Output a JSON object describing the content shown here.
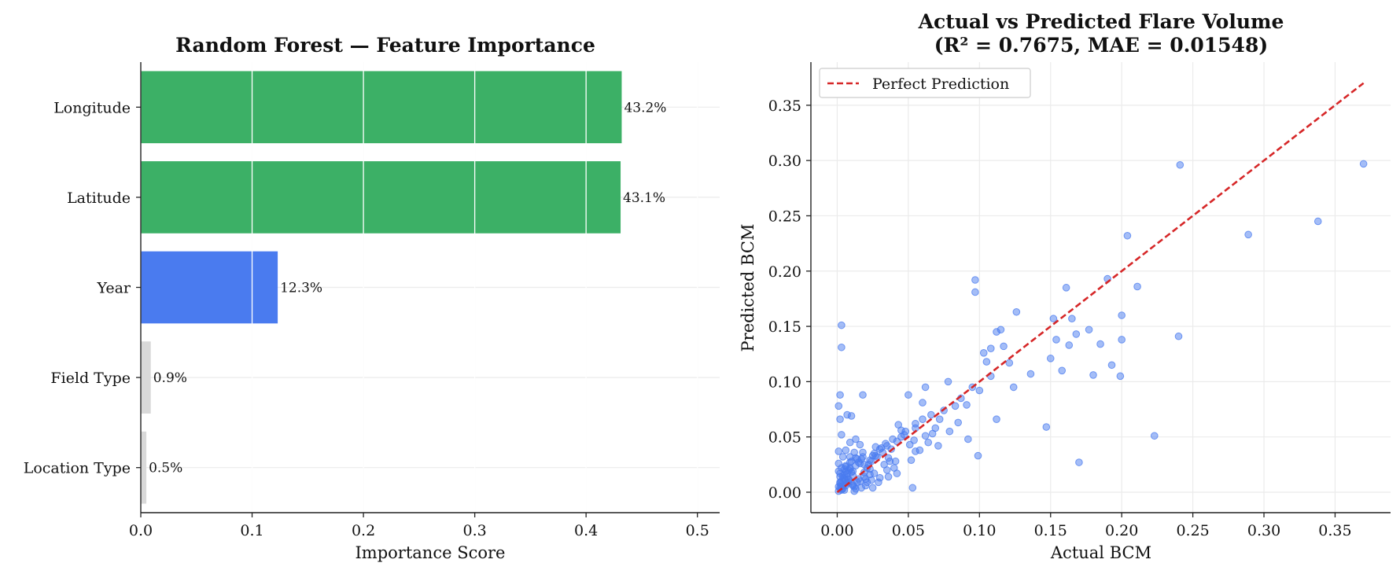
{
  "chart_data": [
    {
      "type": "bar",
      "orientation": "horizontal",
      "title": "Random Forest — Feature Importance",
      "xlabel": "Importance Score",
      "ylabel": "",
      "xlim": [
        0,
        0.52
      ],
      "xticks": [
        "0.0",
        "0.1",
        "0.2",
        "0.3",
        "0.4",
        "0.5"
      ],
      "grid": true,
      "categories": [
        "Longitude",
        "Latitude",
        "Year",
        "Field Type",
        "Location Type"
      ],
      "values": [
        0.432,
        0.431,
        0.123,
        0.009,
        0.005
      ],
      "value_labels": [
        "43.2%",
        "43.1%",
        "12.3%",
        "0.9%",
        "0.5%"
      ],
      "colors": [
        "#3cb066",
        "#3cb066",
        "#4a7bef",
        "#d9d9d9",
        "#d9d9d9"
      ]
    },
    {
      "type": "scatter",
      "title": "Actual vs Predicted Flare Volume",
      "subtitle": "(R² = 0.7675, MAE = 0.01548)",
      "xlabel": "Actual BCM",
      "ylabel": "Predicted BCM",
      "xlim": [
        -0.0185,
        0.389
      ],
      "ylim": [
        -0.0185,
        0.389
      ],
      "xticks": [
        "0.00",
        "0.05",
        "0.10",
        "0.15",
        "0.20",
        "0.25",
        "0.30",
        "0.35"
      ],
      "yticks": [
        "0.00",
        "0.05",
        "0.10",
        "0.15",
        "0.20",
        "0.25",
        "0.30",
        "0.35"
      ],
      "grid": true,
      "legend": {
        "position": "top-left",
        "entries": [
          "Perfect Prediction"
        ]
      },
      "point_color": "#4a7bef",
      "line_color": "#d62728",
      "reference_line": {
        "name": "Perfect Prediction",
        "x": [
          0,
          0.37
        ],
        "y": [
          0,
          0.37
        ]
      },
      "series": [
        {
          "name": "",
          "x": [
            0.37,
            0.241,
            0.338,
            0.289,
            0.24,
            0.204,
            0.223,
            0.211,
            0.2,
            0.199,
            0.2,
            0.19,
            0.193,
            0.185,
            0.177,
            0.165,
            0.18,
            0.161,
            0.163,
            0.152,
            0.15,
            0.158,
            0.17,
            0.168,
            0.154,
            0.147,
            0.136,
            0.126,
            0.121,
            0.112,
            0.108,
            0.103,
            0.097,
            0.097,
            0.095,
            0.108,
            0.115,
            0.117,
            0.105,
            0.1,
            0.124,
            0.112,
            0.099,
            0.078,
            0.083,
            0.085,
            0.087,
            0.091,
            0.062,
            0.06,
            0.05,
            0.06,
            0.003,
            0.003,
            0.002,
            0.001,
            0.002,
            0.018,
            0.01,
            0.007,
            0.003,
            0.001,
            0.013,
            0.045,
            0.035,
            0.055,
            0.075,
            0.062,
            0.051,
            0.042,
            0.071,
            0.043,
            0.032,
            0.028,
            0.033,
            0.041,
            0.047,
            0.069,
            0.079,
            0.092,
            0.039,
            0.036,
            0.064,
            0.072,
            0.055,
            0.027,
            0.04,
            0.045,
            0.053,
            0.058,
            0.036,
            0.052,
            0.067,
            0.03,
            0.038,
            0.048,
            0.054,
            0.055,
            0.066,
            0.023,
            0.019,
            0.024,
            0.031,
            0.035,
            0.018,
            0.025,
            0.029,
            0.037,
            0.042,
            0.015,
            0.021,
            0.026,
            0.014,
            0.019,
            0.023,
            0.016,
            0.011,
            0.013,
            0.009,
            0.012,
            0.008,
            0.01,
            0.006,
            0.007,
            0.005,
            0.004,
            0.003,
            0.002,
            0.006,
            0.004,
            0.003,
            0.005,
            0.002,
            0.001,
            0.008,
            0.006,
            0.004,
            0.012,
            0.009,
            0.007,
            0.005,
            0.011,
            0.016,
            0.02,
            0.014,
            0.01,
            0.008,
            0.022,
            0.026,
            0.018,
            0.03,
            0.034,
            0.017,
            0.011,
            0.009,
            0.013,
            0.008,
            0.006,
            0.004,
            0.003,
            0.002,
            0.001,
            0.004,
            0.006,
            0.002,
            0.003,
            0.001,
            0.001,
            0.002,
            0.003,
            0.005,
            0.007,
            0.009,
            0.011,
            0.013,
            0.015,
            0.017,
            0.019,
            0.021,
            0.023,
            0.025,
            0.027,
            0.024,
            0.02,
            0.016,
            0.012,
            0.009,
            0.006,
            0.003
          ],
          "y": [
            0.297,
            0.296,
            0.245,
            0.233,
            0.141,
            0.232,
            0.051,
            0.186,
            0.16,
            0.105,
            0.138,
            0.193,
            0.115,
            0.134,
            0.147,
            0.157,
            0.106,
            0.185,
            0.133,
            0.157,
            0.121,
            0.11,
            0.027,
            0.143,
            0.138,
            0.059,
            0.107,
            0.163,
            0.117,
            0.145,
            0.13,
            0.126,
            0.192,
            0.181,
            0.095,
            0.105,
            0.147,
            0.132,
            0.118,
            0.092,
            0.095,
            0.066,
            0.033,
            0.1,
            0.078,
            0.063,
            0.085,
            0.079,
            0.095,
            0.066,
            0.088,
            0.081,
            0.151,
            0.131,
            0.088,
            0.078,
            0.066,
            0.088,
            0.069,
            0.07,
            0.052,
            0.037,
            0.048,
            0.056,
            0.042,
            0.062,
            0.074,
            0.051,
            0.043,
            0.046,
            0.042,
            0.061,
            0.036,
            0.032,
            0.025,
            0.028,
            0.052,
            0.058,
            0.055,
            0.048,
            0.048,
            0.014,
            0.045,
            0.066,
            0.037,
            0.041,
            0.022,
            0.05,
            0.004,
            0.038,
            0.031,
            0.029,
            0.053,
            0.013,
            0.039,
            0.055,
            0.047,
            0.058,
            0.07,
            0.021,
            0.025,
            0.011,
            0.04,
            0.02,
            0.032,
            0.033,
            0.009,
            0.028,
            0.017,
            0.012,
            0.022,
            0.035,
            0.009,
            0.018,
            0.029,
            0.026,
            0.015,
            0.031,
            0.022,
            0.005,
            0.012,
            0.028,
            0.019,
            0.008,
            0.016,
            0.006,
            0.01,
            0.004,
            0.024,
            0.013,
            0.007,
            0.002,
            0.017,
            0.005,
            0.02,
            0.011,
            0.003,
            0.036,
            0.027,
            0.014,
            0.021,
            0.006,
            0.043,
            0.012,
            0.03,
            0.018,
            0.009,
            0.025,
            0.017,
            0.036,
            0.039,
            0.044,
            0.004,
            0.007,
            0.032,
            0.003,
            0.011,
            0.023,
            0.015,
            0.002,
            0.008,
            0.019,
            0.032,
            0.006,
            0.014,
            0.022,
            0.001,
            0.026,
            0.009,
            0.003,
            0.012,
            0.017,
            0.021,
            0.019,
            0.024,
            0.027,
            0.03,
            0.014,
            0.009,
            0.016,
            0.004,
            0.033,
            0.028,
            0.006,
            0.01,
            0.001,
            0.045,
            0.038,
            0.005
          ]
        }
      ]
    }
  ]
}
